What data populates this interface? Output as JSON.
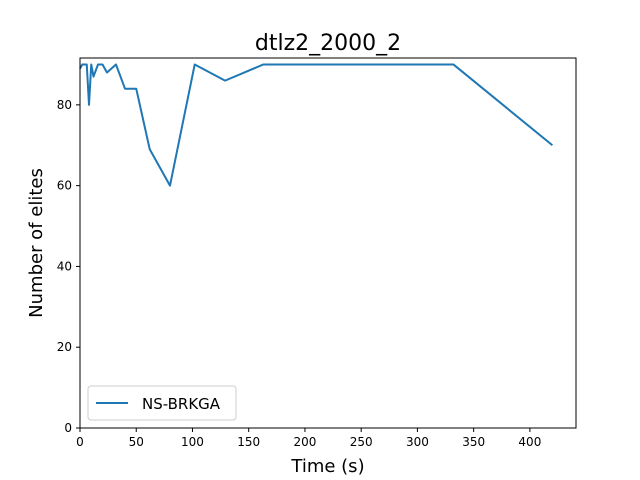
{
  "chart_data": {
    "type": "line",
    "title": "dtlz2_2000_2",
    "xlabel": "Time (s)",
    "ylabel": "Number of elites",
    "xlim": [
      0,
      441
    ],
    "ylim": [
      0,
      91.6
    ],
    "xticks": [
      0,
      50,
      100,
      150,
      200,
      250,
      300,
      350,
      400
    ],
    "yticks": [
      0,
      20,
      40,
      60,
      80
    ],
    "legend_position": "lower-left",
    "series": [
      {
        "name": "NS-BRKGA",
        "color": "#1f77b4",
        "x": [
          0,
          2,
          4,
          6,
          8,
          10,
          12,
          16,
          20,
          24,
          28,
          32,
          40,
          50,
          62,
          80,
          102,
          129,
          163,
          332,
          420
        ],
        "y": [
          89,
          90,
          90,
          90,
          80,
          90,
          87,
          90,
          90,
          88,
          89,
          90,
          84,
          84,
          69,
          60,
          90,
          86,
          90,
          90,
          70
        ]
      }
    ]
  }
}
